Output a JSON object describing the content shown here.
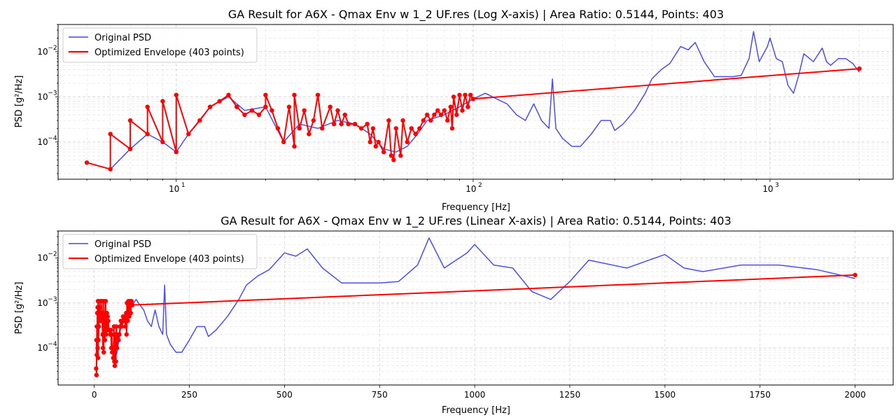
{
  "chart_data": [
    {
      "type": "line",
      "title": "GA Result for A6X - Qmax Env w 1_2 UF.res (Log X-axis) | Area Ratio: 0.5144, Points: 403",
      "xlabel": "Frequency [Hz]",
      "ylabel": "PSD [g²/Hz]",
      "xscale": "log",
      "yscale": "log",
      "xlim": [
        4,
        2600
      ],
      "ylim": [
        1.5e-05,
        0.04
      ],
      "x_tick_labels": [
        "10",
        "10",
        "10"
      ],
      "x_tick_exponents": [
        "1",
        "2",
        "3"
      ],
      "y_tick_labels": [
        "10",
        "10",
        "10"
      ],
      "y_tick_exponents": [
        "−4",
        "−3",
        "−2"
      ],
      "grid": true,
      "legend_position": "upper-left",
      "series": [
        {
          "name": "Original PSD",
          "color": "#4444e6",
          "x": [
            5,
            6,
            7,
            8,
            9,
            10,
            11,
            13,
            15,
            17,
            20,
            23,
            26,
            30,
            35,
            40,
            45,
            50,
            55,
            60,
            65,
            70,
            80,
            90,
            100,
            110,
            120,
            130,
            140,
            150,
            160,
            170,
            180,
            185,
            190,
            200,
            215,
            230,
            250,
            270,
            290,
            300,
            320,
            350,
            380,
            400,
            430,
            460,
            500,
            530,
            560,
            600,
            650,
            700,
            750,
            800,
            850,
            880,
            920,
            980,
            1000,
            1050,
            1100,
            1150,
            1200,
            1250,
            1300,
            1400,
            1500,
            1550,
            1600,
            1700,
            1800,
            1900,
            2000
          ],
          "y": [
            3.5e-05,
            2.5e-05,
            7e-05,
            0.00015,
            0.0001,
            6e-05,
            0.00015,
            0.0006,
            0.001,
            0.0005,
            0.0006,
            0.0001,
            0.00025,
            0.0002,
            0.0003,
            0.00025,
            0.00015,
            7e-05,
            6e-05,
            8e-05,
            0.00015,
            0.0003,
            0.0004,
            0.0006,
            0.0009,
            0.0012,
            0.0009,
            0.0007,
            0.0004,
            0.0003,
            0.0007,
            0.0003,
            0.0002,
            0.0025,
            0.0002,
            0.00012,
            8e-05,
            8e-05,
            0.00015,
            0.0003,
            0.0003,
            0.00018,
            0.00025,
            0.0005,
            0.0012,
            0.0025,
            0.004,
            0.0055,
            0.013,
            0.011,
            0.016,
            0.006,
            0.0028,
            0.0028,
            0.0028,
            0.003,
            0.007,
            0.028,
            0.006,
            0.013,
            0.02,
            0.007,
            0.006,
            0.0018,
            0.0012,
            0.003,
            0.009,
            0.006,
            0.012,
            0.006,
            0.005,
            0.007,
            0.007,
            0.0055,
            0.0035
          ]
        },
        {
          "name": "Optimized Envelope (403 points)",
          "color": "#ff0000",
          "x": [
            5,
            6,
            6,
            7,
            7,
            8,
            8,
            9,
            9,
            10,
            10,
            11,
            12,
            13,
            14,
            15,
            16,
            17,
            18,
            19,
            20,
            20,
            21,
            22,
            23,
            24,
            25,
            25,
            26,
            27,
            28,
            29,
            30,
            31,
            33,
            34,
            35,
            36,
            37,
            38,
            40,
            42,
            44,
            45,
            46,
            47,
            48,
            50,
            52,
            53,
            54,
            55,
            57,
            58,
            60,
            62,
            64,
            66,
            68,
            70,
            72,
            74,
            76,
            78,
            80,
            82,
            84,
            85,
            86,
            88,
            90,
            92,
            94,
            96,
            98,
            100,
            2000
          ],
          "y": [
            3.5e-05,
            2.5e-05,
            0.00015,
            7e-05,
            0.0003,
            0.00015,
            0.0006,
            0.0001,
            0.0008,
            6e-05,
            0.0011,
            0.00015,
            0.0003,
            0.0006,
            0.0008,
            0.0011,
            0.0006,
            0.0004,
            0.0005,
            0.0004,
            0.0006,
            0.0011,
            0.0005,
            0.0002,
            0.0001,
            0.0006,
            8e-05,
            0.0011,
            0.0002,
            0.0005,
            0.00015,
            0.0003,
            0.0011,
            0.0002,
            0.0006,
            0.00025,
            0.0005,
            0.00025,
            0.0004,
            0.00025,
            0.00025,
            0.0002,
            0.00025,
            0.0001,
            0.0002,
            8e-05,
            0.0001,
            6e-05,
            0.0003,
            5e-05,
            4e-05,
            0.0002,
            5e-05,
            0.0003,
            0.0001,
            0.0002,
            0.00015,
            0.0002,
            0.0003,
            0.0004,
            0.0003,
            0.0004,
            0.0005,
            0.0004,
            0.0005,
            0.0003,
            0.0006,
            0.0002,
            0.001,
            0.0004,
            0.0011,
            0.0005,
            0.0011,
            0.0006,
            0.0011,
            0.0009,
            0.0042
          ]
        }
      ]
    },
    {
      "type": "line",
      "title": "GA Result for A6X - Qmax Env w 1_2 UF.res (Linear X-axis) | Area Ratio: 0.5144, Points: 403",
      "xlabel": "Frequency [Hz]",
      "ylabel": "PSD [g²/Hz]",
      "xscale": "linear",
      "yscale": "log",
      "xlim": [
        -95,
        2100
      ],
      "ylim": [
        1.5e-05,
        0.04
      ],
      "x_ticks": [
        0,
        250,
        500,
        750,
        1000,
        1250,
        1500,
        1750,
        2000
      ],
      "x_tick_labels": [
        "0",
        "250",
        "500",
        "750",
        "1000",
        "1250",
        "1500",
        "1750",
        "2000"
      ],
      "y_tick_labels": [
        "10",
        "10",
        "10"
      ],
      "y_tick_exponents": [
        "−4",
        "−3",
        "−2"
      ],
      "grid": true,
      "legend_position": "upper-left",
      "series": [
        {
          "name": "Original PSD",
          "color": "#4444e6",
          "x": [
            5,
            6,
            7,
            8,
            9,
            10,
            11,
            13,
            15,
            17,
            20,
            23,
            26,
            30,
            35,
            40,
            45,
            50,
            55,
            60,
            65,
            70,
            80,
            90,
            100,
            110,
            120,
            130,
            140,
            150,
            160,
            170,
            180,
            185,
            190,
            200,
            215,
            230,
            250,
            270,
            290,
            300,
            320,
            350,
            380,
            400,
            430,
            460,
            500,
            530,
            560,
            600,
            650,
            700,
            750,
            800,
            850,
            880,
            920,
            980,
            1000,
            1050,
            1100,
            1150,
            1200,
            1250,
            1300,
            1400,
            1500,
            1550,
            1600,
            1700,
            1800,
            1900,
            2000
          ],
          "y": [
            3.5e-05,
            2.5e-05,
            7e-05,
            0.00015,
            0.0001,
            6e-05,
            0.00015,
            0.0006,
            0.001,
            0.0005,
            0.0006,
            0.0001,
            0.00025,
            0.0002,
            0.0003,
            0.00025,
            0.00015,
            7e-05,
            6e-05,
            8e-05,
            0.00015,
            0.0003,
            0.0004,
            0.0006,
            0.0009,
            0.0012,
            0.0009,
            0.0007,
            0.0004,
            0.0003,
            0.0007,
            0.0003,
            0.0002,
            0.0025,
            0.0002,
            0.00012,
            8e-05,
            8e-05,
            0.00015,
            0.0003,
            0.0003,
            0.00018,
            0.00025,
            0.0005,
            0.0012,
            0.0025,
            0.004,
            0.0055,
            0.013,
            0.011,
            0.016,
            0.006,
            0.0028,
            0.0028,
            0.0028,
            0.003,
            0.007,
            0.028,
            0.006,
            0.013,
            0.02,
            0.007,
            0.006,
            0.0018,
            0.0012,
            0.003,
            0.009,
            0.006,
            0.012,
            0.006,
            0.005,
            0.007,
            0.007,
            0.0055,
            0.0035
          ]
        },
        {
          "name": "Optimized Envelope (403 points)",
          "color": "#ff0000",
          "x": [
            5,
            6,
            6,
            7,
            7,
            8,
            8,
            9,
            9,
            10,
            10,
            11,
            12,
            13,
            14,
            15,
            16,
            17,
            18,
            19,
            20,
            20,
            21,
            22,
            23,
            24,
            25,
            25,
            26,
            27,
            28,
            29,
            30,
            31,
            33,
            34,
            35,
            36,
            37,
            38,
            40,
            42,
            44,
            45,
            46,
            47,
            48,
            50,
            52,
            53,
            54,
            55,
            57,
            58,
            60,
            62,
            64,
            66,
            68,
            70,
            72,
            74,
            76,
            78,
            80,
            82,
            84,
            85,
            86,
            88,
            90,
            92,
            94,
            96,
            98,
            100,
            2000
          ],
          "y": [
            3.5e-05,
            2.5e-05,
            0.00015,
            7e-05,
            0.0003,
            0.00015,
            0.0006,
            0.0001,
            0.0008,
            6e-05,
            0.0011,
            0.00015,
            0.0003,
            0.0006,
            0.0008,
            0.0011,
            0.0006,
            0.0004,
            0.0005,
            0.0004,
            0.0006,
            0.0011,
            0.0005,
            0.0002,
            0.0001,
            0.0006,
            8e-05,
            0.0011,
            0.0002,
            0.0005,
            0.00015,
            0.0003,
            0.0011,
            0.0002,
            0.0006,
            0.00025,
            0.0005,
            0.00025,
            0.0004,
            0.00025,
            0.00025,
            0.0002,
            0.00025,
            0.0001,
            0.0002,
            8e-05,
            0.0001,
            6e-05,
            0.0003,
            5e-05,
            4e-05,
            0.0002,
            5e-05,
            0.0003,
            0.0001,
            0.0002,
            0.00015,
            0.0002,
            0.0003,
            0.0004,
            0.0003,
            0.0004,
            0.0005,
            0.0004,
            0.0005,
            0.0003,
            0.0006,
            0.0002,
            0.001,
            0.0004,
            0.0011,
            0.0005,
            0.0011,
            0.0006,
            0.0011,
            0.0009,
            0.0042
          ]
        }
      ]
    }
  ]
}
